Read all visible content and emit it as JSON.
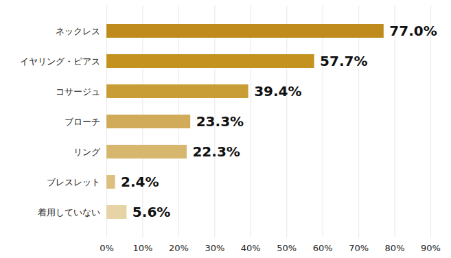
{
  "chart_data": {
    "type": "bar",
    "orientation": "horizontal",
    "categories": [
      "ネックレス",
      "イヤリング・ピアス",
      "コサージュ",
      "ブローチ",
      "リング",
      "ブレスレット",
      "着用していない"
    ],
    "values": [
      77.0,
      57.7,
      39.4,
      23.3,
      22.3,
      2.4,
      5.6
    ],
    "value_labels": [
      "77.0%",
      "57.7%",
      "39.4%",
      "23.3%",
      "22.3%",
      "2.4%",
      "5.6%"
    ],
    "colors": [
      "#bf8b1c",
      "#c3921f",
      "#c99d35",
      "#d1ab5a",
      "#d7b76e",
      "#dcc07f",
      "#e6d4a6"
    ],
    "xlim": [
      0,
      90
    ],
    "xticks": [
      {
        "value": 0,
        "label": "0%"
      },
      {
        "value": 10,
        "label": "10%"
      },
      {
        "value": 20,
        "label": "20%"
      },
      {
        "value": 30,
        "label": "30%"
      },
      {
        "value": 40,
        "label": "40%"
      },
      {
        "value": 50,
        "label": "50%"
      },
      {
        "value": 60,
        "label": "60%"
      },
      {
        "value": 70,
        "label": "70%"
      },
      {
        "value": 80,
        "label": "80%"
      },
      {
        "value": 90,
        "label": "90%"
      }
    ],
    "grid": true,
    "data_labels": true
  }
}
